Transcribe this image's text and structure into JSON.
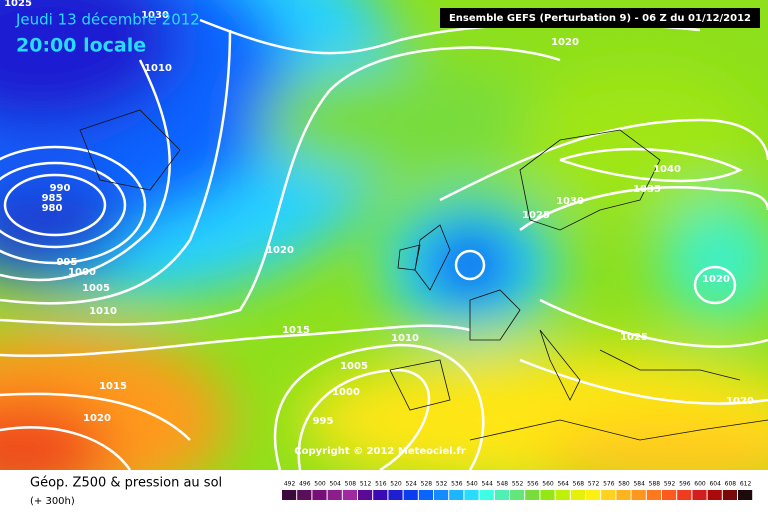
{
  "header": {
    "date": "Jeudi 13 décembre 2012",
    "time": "20:00 locale",
    "run": "Ensemble GEFS (Perturbation 9)  -  06 Z du 01/12/2012"
  },
  "copyright": "Copyright © 2012 Meteociel.fr",
  "footer": {
    "title": "Géop. Z500 & pression au sol",
    "lead": "(+ 300h)"
  },
  "isobar_labels": [
    "1025",
    "1030",
    "1020",
    "1010",
    "990",
    "985",
    "980",
    "995",
    "1000",
    "1005",
    "1010",
    "1020",
    "1015",
    "1010",
    "1005",
    "1000",
    "995",
    "1015",
    "1020",
    "1025",
    "1030",
    "1035",
    "1040",
    "1020",
    "1025",
    "1020"
  ],
  "legend": {
    "values": [
      492,
      496,
      500,
      504,
      508,
      512,
      516,
      520,
      524,
      528,
      532,
      536,
      540,
      544,
      548,
      552,
      556,
      560,
      564,
      568,
      572,
      576,
      580,
      584,
      588,
      592,
      596,
      600,
      604,
      608,
      612
    ],
    "colors": [
      "#3c0a3c",
      "#5a0f5a",
      "#780f78",
      "#8c1e8c",
      "#a028a0",
      "#5a0a96",
      "#3c0ab4",
      "#1e1ed2",
      "#0a3cf0",
      "#0a64ff",
      "#148cff",
      "#1eb4ff",
      "#28dcff",
      "#3cffe6",
      "#50f0b4",
      "#64e678",
      "#78dc3c",
      "#96e614",
      "#bef00a",
      "#e6f00a",
      "#fff014",
      "#ffd21e",
      "#ffb41e",
      "#ff961e",
      "#ff781e",
      "#ff5a1e",
      "#f03c1e",
      "#d21e1e",
      "#aa0a0a",
      "#780a0a",
      "#1e0a0a"
    ]
  }
}
